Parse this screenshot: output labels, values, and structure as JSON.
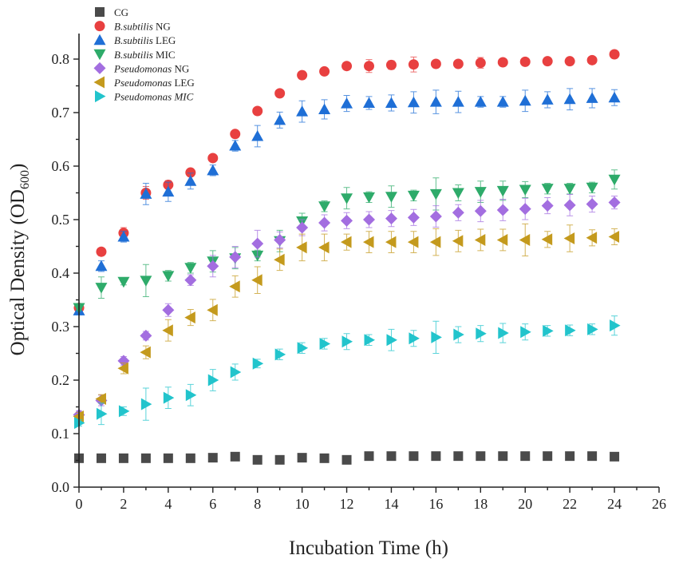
{
  "chart_data": {
    "type": "scatter",
    "title": "",
    "xlabel": "Incubation Time (h)",
    "ylabel": "Optical Density (OD",
    "ylabel_sub": "600",
    "ylabel_close": ")",
    "xlim": [
      0,
      26
    ],
    "ylim": [
      0,
      0.85
    ],
    "xticks": [
      0,
      2,
      4,
      6,
      8,
      10,
      12,
      14,
      16,
      18,
      20,
      22,
      24,
      26
    ],
    "yticks": [
      0.0,
      0.1,
      0.2,
      0.3,
      0.4,
      0.5,
      0.6,
      0.7,
      0.8
    ],
    "x": [
      0,
      1,
      2,
      3,
      4,
      5,
      6,
      7,
      8,
      9,
      10,
      11,
      12,
      13,
      14,
      15,
      16,
      17,
      18,
      19,
      20,
      21,
      22,
      23,
      24
    ],
    "legend_position": "top-left",
    "series": [
      {
        "name_italic": "",
        "name_plain": "CG",
        "marker": "square",
        "color": "#4a4a4a",
        "values": [
          0.054,
          0.054,
          0.054,
          0.054,
          0.054,
          0.054,
          0.055,
          0.057,
          0.051,
          0.051,
          0.055,
          0.054,
          0.051,
          0.058,
          0.058,
          0.058,
          0.058,
          0.058,
          0.058,
          0.058,
          0.058,
          0.058,
          0.058,
          0.058,
          0.057
        ],
        "errors": [
          0.003,
          0.003,
          0.003,
          0.003,
          0.003,
          0.003,
          0.003,
          0.003,
          0.003,
          0.003,
          0.003,
          0.003,
          0.003,
          0.003,
          0.003,
          0.003,
          0.003,
          0.003,
          0.003,
          0.003,
          0.003,
          0.003,
          0.003,
          0.003,
          0.003
        ]
      },
      {
        "name_italic": "B.subtilis",
        "name_plain": " NG",
        "marker": "circle",
        "color": "#e84040",
        "values": [
          0.335,
          0.44,
          0.475,
          0.55,
          0.565,
          0.588,
          0.615,
          0.66,
          0.703,
          0.736,
          0.77,
          0.777,
          0.787,
          0.787,
          0.789,
          0.79,
          0.791,
          0.791,
          0.793,
          0.794,
          0.795,
          0.796,
          0.796,
          0.798,
          0.809
        ],
        "errors": [
          0.005,
          0.005,
          0.01,
          0.012,
          0.008,
          0.006,
          0.006,
          0.006,
          0.006,
          0.006,
          0.006,
          0.006,
          0.006,
          0.012,
          0.008,
          0.014,
          0.006,
          0.006,
          0.01,
          0.006,
          0.006,
          0.006,
          0.006,
          0.006,
          0.006
        ]
      },
      {
        "name_italic": "B.subtilis",
        "name_plain": " LEG",
        "marker": "triangle-up",
        "color": "#1f6fd6",
        "values": [
          0.33,
          0.413,
          0.468,
          0.548,
          0.552,
          0.572,
          0.592,
          0.638,
          0.656,
          0.686,
          0.702,
          0.706,
          0.717,
          0.718,
          0.718,
          0.719,
          0.72,
          0.72,
          0.72,
          0.72,
          0.722,
          0.724,
          0.725,
          0.727,
          0.728
        ],
        "errors": [
          0.008,
          0.01,
          0.01,
          0.02,
          0.018,
          0.015,
          0.01,
          0.01,
          0.02,
          0.015,
          0.02,
          0.018,
          0.015,
          0.012,
          0.015,
          0.02,
          0.022,
          0.02,
          0.01,
          0.01,
          0.02,
          0.015,
          0.02,
          0.018,
          0.015
        ]
      },
      {
        "name_italic": "B.subtilis",
        "name_plain": " MIC",
        "marker": "triangle-down",
        "color": "#2eab6a",
        "values": [
          0.335,
          0.373,
          0.384,
          0.386,
          0.395,
          0.41,
          0.422,
          0.428,
          0.433,
          0.46,
          0.497,
          0.525,
          0.54,
          0.542,
          0.543,
          0.545,
          0.548,
          0.55,
          0.552,
          0.554,
          0.556,
          0.558,
          0.558,
          0.56,
          0.575
        ],
        "errors": [
          0.005,
          0.02,
          0.006,
          0.03,
          0.01,
          0.01,
          0.02,
          0.02,
          0.01,
          0.02,
          0.015,
          0.01,
          0.02,
          0.01,
          0.02,
          0.01,
          0.03,
          0.015,
          0.02,
          0.018,
          0.015,
          0.01,
          0.01,
          0.01,
          0.018
        ]
      },
      {
        "name_italic": "Pseudomonas",
        "name_plain": " NG",
        "marker": "diamond",
        "color": "#a36ee0",
        "values": [
          0.135,
          0.162,
          0.236,
          0.283,
          0.331,
          0.387,
          0.413,
          0.43,
          0.455,
          0.462,
          0.485,
          0.494,
          0.498,
          0.5,
          0.502,
          0.504,
          0.506,
          0.513,
          0.516,
          0.518,
          0.52,
          0.526,
          0.527,
          0.529,
          0.532
        ],
        "errors": [
          0.008,
          0.01,
          0.008,
          0.008,
          0.012,
          0.01,
          0.02,
          0.02,
          0.025,
          0.015,
          0.015,
          0.015,
          0.015,
          0.015,
          0.015,
          0.015,
          0.02,
          0.015,
          0.02,
          0.02,
          0.02,
          0.015,
          0.02,
          0.015,
          0.012
        ]
      },
      {
        "name_italic": "Pseudomonas",
        "name_plain": " LEG",
        "marker": "triangle-left",
        "color": "#c49a1d",
        "values": [
          0.132,
          0.165,
          0.222,
          0.252,
          0.293,
          0.317,
          0.331,
          0.375,
          0.387,
          0.425,
          0.448,
          0.448,
          0.458,
          0.458,
          0.458,
          0.458,
          0.458,
          0.46,
          0.462,
          0.462,
          0.462,
          0.463,
          0.465,
          0.466,
          0.468
        ],
        "errors": [
          0.008,
          0.008,
          0.01,
          0.012,
          0.02,
          0.015,
          0.02,
          0.02,
          0.025,
          0.02,
          0.025,
          0.025,
          0.015,
          0.02,
          0.02,
          0.02,
          0.025,
          0.02,
          0.02,
          0.02,
          0.03,
          0.015,
          0.025,
          0.015,
          0.015
        ]
      },
      {
        "name_italic": "Pseudomonas MIC",
        "name_plain": "",
        "marker": "triangle-right",
        "color": "#22c4cc",
        "values": [
          0.12,
          0.137,
          0.142,
          0.155,
          0.167,
          0.172,
          0.2,
          0.215,
          0.231,
          0.248,
          0.26,
          0.268,
          0.272,
          0.275,
          0.275,
          0.278,
          0.28,
          0.285,
          0.287,
          0.288,
          0.29,
          0.292,
          0.293,
          0.295,
          0.302
        ],
        "errors": [
          0.006,
          0.02,
          0.008,
          0.03,
          0.02,
          0.02,
          0.02,
          0.015,
          0.008,
          0.01,
          0.01,
          0.01,
          0.015,
          0.01,
          0.02,
          0.015,
          0.03,
          0.015,
          0.015,
          0.018,
          0.015,
          0.01,
          0.01,
          0.01,
          0.018
        ]
      }
    ]
  }
}
